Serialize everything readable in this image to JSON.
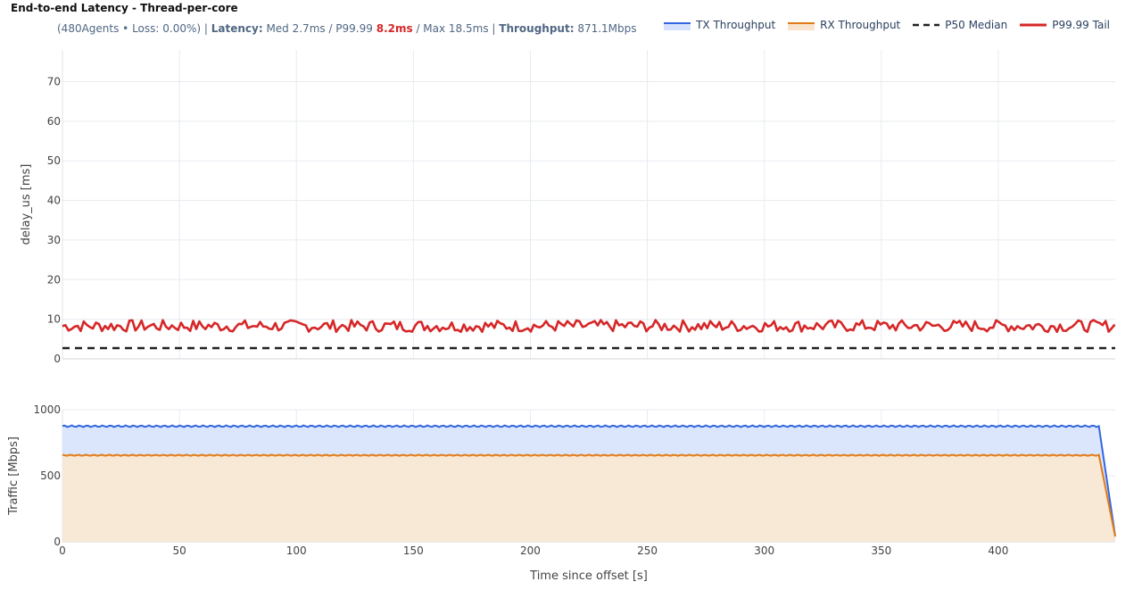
{
  "header": {
    "title": "End-to-end Latency - Thread-per-core",
    "sub_prefix": "(480Agents • Loss: 0.00%) | ",
    "latency_label": "Latency:",
    "latency_text": " Med 2.7ms / P99.99 ",
    "p9999_value": "8.2ms",
    "max_text": " / Max 18.5ms | ",
    "throughput_label": "Throughput:",
    "throughput_value": " 871.1Mbps"
  },
  "legend": [
    {
      "label": "TX Throughput",
      "color": "#3366e0",
      "style": "area"
    },
    {
      "label": "RX Throughput",
      "color": "#e07b16",
      "style": "area"
    },
    {
      "label": "P50 Median",
      "color": "#222222",
      "style": "dash"
    },
    {
      "label": "P99.99 Tail",
      "color": "#d62728",
      "style": "line"
    }
  ],
  "chart_data": [
    {
      "type": "line",
      "ylabel": "delay_us [ms]",
      "xlim": [
        0,
        450
      ],
      "ylim": [
        0,
        78
      ],
      "yticks": [
        0,
        10,
        20,
        30,
        40,
        50,
        60,
        70
      ],
      "series": [
        {
          "name": "P99.99 Tail",
          "color": "#d62728",
          "mean": 8.2,
          "jitter_min": 6.8,
          "jitter_max": 9.8
        },
        {
          "name": "P50 Median",
          "color": "#222222",
          "values_constant": 2.7
        }
      ]
    },
    {
      "type": "area",
      "xlabel": "Time since offset [s]",
      "ylabel": "Traffic [Mbps]",
      "xlim": [
        0,
        450
      ],
      "ylim": [
        0,
        1000
      ],
      "xticks": [
        0,
        50,
        100,
        150,
        200,
        250,
        300,
        350,
        400
      ],
      "yticks": [
        0,
        500,
        1000
      ],
      "series": [
        {
          "name": "TX Throughput",
          "color": "#3366e0",
          "plateau": 875,
          "ripple": 6,
          "end_x": 450,
          "end_value": 40,
          "drop_start_x": 443
        },
        {
          "name": "RX Throughput",
          "color": "#e07b16",
          "plateau": 655,
          "ripple": 4,
          "end_x": 450,
          "end_value": 40,
          "drop_start_x": 443
        }
      ]
    }
  ]
}
